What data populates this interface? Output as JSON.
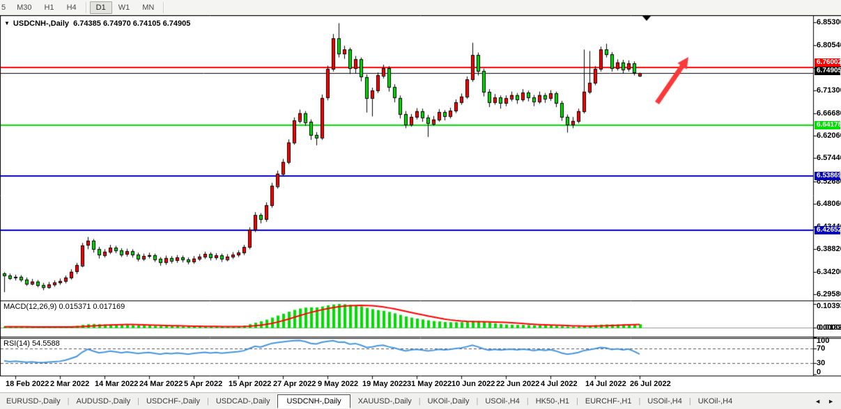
{
  "toolbar": {
    "timeframes": [
      {
        "label": "5",
        "active": false
      },
      {
        "label": "M30",
        "active": false
      },
      {
        "label": "H1",
        "active": false
      },
      {
        "label": "H4",
        "active": false
      },
      {
        "label": "D1",
        "active": true
      },
      {
        "label": "W1",
        "active": false
      },
      {
        "label": "MN",
        "active": false
      }
    ]
  },
  "chart": {
    "title_symbol": "USDCNH-,Daily",
    "title_ohlc": "6.74385 6.74970 6.74105 6.74905",
    "toggle_icon": "▼",
    "price_axis": {
      "min": 6.2958,
      "max": 6.853,
      "ticks": [
        "6.85300",
        "6.80540",
        "6.75920",
        "6.71300",
        "6.66680",
        "6.62060",
        "6.57440",
        "6.52680",
        "6.48060",
        "6.43440",
        "6.38820",
        "6.34200",
        "6.29580"
      ]
    },
    "levels": [
      {
        "value": 6.76002,
        "label": "6.76002",
        "color": "#ff0000",
        "text_color": "#ffffff",
        "line_width": 2
      },
      {
        "value": 6.74905,
        "label": "6.74905",
        "color": "#000000",
        "text_color": "#ffffff",
        "line_width": 1
      },
      {
        "value": 6.64178,
        "label": "6.64178",
        "color": "#00e000",
        "text_color": "#ffffff",
        "line_width": 2
      },
      {
        "value": 6.53869,
        "label": "6.53869",
        "color": "#0000c8",
        "text_color": "#ffffff",
        "line_width": 2
      },
      {
        "value": 6.42652,
        "label": "6.42652",
        "color": "#0000c8",
        "text_color": "#ffffff",
        "line_width": 2
      }
    ],
    "colors": {
      "bull": "#ff0000",
      "bear": "#00dd00",
      "outline": "#000000",
      "macd_hist": "#00e000",
      "macd_signal": "#ff0000",
      "rsi_line": "#4695e0",
      "arrow": "#fa3a3a",
      "background": "#ffffff"
    },
    "arrow_annotation": {
      "from": [
        943,
        126
      ],
      "to": [
        988,
        60
      ]
    },
    "shift_marker_x": 928
  },
  "macd_panel": {
    "label": "MACD(12,26,9) 0.015371 0.017169",
    "axis_top": "0.103934",
    "axis_bottom_overlap": [
      "0.00000",
      "0.018297"
    ]
  },
  "rsi_panel": {
    "label": "RSI(14) 54.5588",
    "axis": [
      "100",
      "70",
      "30",
      "0"
    ],
    "dashed_levels": [
      70,
      30
    ]
  },
  "chart_data": {
    "type": "candlestick",
    "symbol": "USDCNH-",
    "timeframe": "Daily",
    "title": "USDCNH-,Daily 6.74385 6.74970 6.74105 6.74905",
    "ylim": [
      6.2958,
      6.853
    ],
    "legend_position": "none",
    "grid": false,
    "x_tick_indices": [
      2,
      10,
      18,
      26,
      34,
      42,
      50,
      58,
      66,
      74,
      82,
      90,
      98,
      106,
      114
    ],
    "x_tick_labels": [
      "18 Feb 2022",
      "2 Mar 2022",
      "14 Mar 2022",
      "24 Mar 2022",
      "5 Apr 2022",
      "15 Apr 2022",
      "27 Apr 2022",
      "9 May 2022",
      "19 May 2022",
      "31 May 2022",
      "10 Jun 2022",
      "22 Jun 2022",
      "4 Jul 2022",
      "14 Jul 2022",
      "26 Jul 2022"
    ],
    "ohlc": [
      [
        6.338,
        6.341,
        6.3,
        6.334
      ],
      [
        6.334,
        6.338,
        6.325,
        6.329
      ],
      [
        6.329,
        6.336,
        6.324,
        6.331
      ],
      [
        6.331,
        6.335,
        6.321,
        6.326
      ],
      [
        6.326,
        6.33,
        6.313,
        6.318
      ],
      [
        6.318,
        6.327,
        6.314,
        6.322
      ],
      [
        6.322,
        6.325,
        6.31,
        6.315
      ],
      [
        6.315,
        6.319,
        6.304,
        6.311
      ],
      [
        6.311,
        6.321,
        6.307,
        6.316
      ],
      [
        6.316,
        6.324,
        6.311,
        6.32
      ],
      [
        6.32,
        6.328,
        6.315,
        6.323
      ],
      [
        6.323,
        6.334,
        6.318,
        6.33
      ],
      [
        6.33,
        6.347,
        6.326,
        6.342
      ],
      [
        6.342,
        6.36,
        6.337,
        6.355
      ],
      [
        6.355,
        6.401,
        6.351,
        6.396
      ],
      [
        6.396,
        6.413,
        6.388,
        6.405
      ],
      [
        6.405,
        6.409,
        6.381,
        6.388
      ],
      [
        6.388,
        6.393,
        6.369,
        6.376
      ],
      [
        6.376,
        6.388,
        6.371,
        6.383
      ],
      [
        6.383,
        6.397,
        6.378,
        6.391
      ],
      [
        6.391,
        6.395,
        6.38,
        6.386
      ],
      [
        6.386,
        6.39,
        6.372,
        6.378
      ],
      [
        6.378,
        6.389,
        6.373,
        6.384
      ],
      [
        6.384,
        6.388,
        6.371,
        6.377
      ],
      [
        6.377,
        6.381,
        6.363,
        6.369
      ],
      [
        6.369,
        6.379,
        6.364,
        6.374
      ],
      [
        6.374,
        6.381,
        6.369,
        6.376
      ],
      [
        6.376,
        6.379,
        6.362,
        6.368
      ],
      [
        6.368,
        6.372,
        6.354,
        6.361
      ],
      [
        6.361,
        6.375,
        6.356,
        6.37
      ],
      [
        6.37,
        6.374,
        6.359,
        6.365
      ],
      [
        6.365,
        6.376,
        6.36,
        6.371
      ],
      [
        6.371,
        6.375,
        6.361,
        6.367
      ],
      [
        6.367,
        6.371,
        6.357,
        6.363
      ],
      [
        6.363,
        6.374,
        6.358,
        6.369
      ],
      [
        6.369,
        6.378,
        6.364,
        6.373
      ],
      [
        6.373,
        6.383,
        6.368,
        6.378
      ],
      [
        6.378,
        6.382,
        6.365,
        6.371
      ],
      [
        6.371,
        6.38,
        6.366,
        6.375
      ],
      [
        6.375,
        6.379,
        6.362,
        6.368
      ],
      [
        6.368,
        6.378,
        6.363,
        6.373
      ],
      [
        6.373,
        6.382,
        6.368,
        6.377
      ],
      [
        6.377,
        6.386,
        6.372,
        6.381
      ],
      [
        6.381,
        6.397,
        6.376,
        6.392
      ],
      [
        6.392,
        6.433,
        6.388,
        6.428
      ],
      [
        6.428,
        6.464,
        6.423,
        6.458
      ],
      [
        6.458,
        6.462,
        6.441,
        6.449
      ],
      [
        6.449,
        6.484,
        6.444,
        6.478
      ],
      [
        6.478,
        6.524,
        6.473,
        6.518
      ],
      [
        6.518,
        6.549,
        6.512,
        6.543
      ],
      [
        6.543,
        6.573,
        6.538,
        6.567
      ],
      [
        6.567,
        6.613,
        6.562,
        6.607
      ],
      [
        6.607,
        6.658,
        6.602,
        6.652
      ],
      [
        6.652,
        6.674,
        6.646,
        6.667
      ],
      [
        6.667,
        6.671,
        6.641,
        6.649
      ],
      [
        6.649,
        6.654,
        6.612,
        6.622
      ],
      [
        6.622,
        6.628,
        6.601,
        6.617
      ],
      [
        6.617,
        6.705,
        6.612,
        6.698
      ],
      [
        6.698,
        6.764,
        6.693,
        6.757
      ],
      [
        6.757,
        6.829,
        6.752,
        6.82
      ],
      [
        6.82,
        6.851,
        6.781,
        6.788
      ],
      [
        6.788,
        6.805,
        6.778,
        6.797
      ],
      [
        6.797,
        6.801,
        6.747,
        6.758
      ],
      [
        6.758,
        6.784,
        6.749,
        6.777
      ],
      [
        6.777,
        6.781,
        6.732,
        6.741
      ],
      [
        6.741,
        6.746,
        6.668,
        6.698
      ],
      [
        6.698,
        6.719,
        6.66,
        6.713
      ],
      [
        6.713,
        6.75,
        6.708,
        6.744
      ],
      [
        6.744,
        6.766,
        6.738,
        6.759
      ],
      [
        6.759,
        6.763,
        6.711,
        6.72
      ],
      [
        6.72,
        6.726,
        6.689,
        6.698
      ],
      [
        6.698,
        6.703,
        6.656,
        6.665
      ],
      [
        6.665,
        6.671,
        6.636,
        6.644
      ],
      [
        6.644,
        6.665,
        6.639,
        6.659
      ],
      [
        6.659,
        6.677,
        6.654,
        6.671
      ],
      [
        6.671,
        6.676,
        6.649,
        6.658
      ],
      [
        6.658,
        6.663,
        6.618,
        6.646
      ],
      [
        6.646,
        6.661,
        6.641,
        6.654
      ],
      [
        6.654,
        6.675,
        6.649,
        6.669
      ],
      [
        6.669,
        6.673,
        6.652,
        6.661
      ],
      [
        6.661,
        6.678,
        6.656,
        6.672
      ],
      [
        6.672,
        6.695,
        6.667,
        6.689
      ],
      [
        6.689,
        6.707,
        6.684,
        6.701
      ],
      [
        6.701,
        6.742,
        6.696,
        6.736
      ],
      [
        6.736,
        6.811,
        6.731,
        6.786
      ],
      [
        6.786,
        6.791,
        6.744,
        6.753
      ],
      [
        6.753,
        6.758,
        6.701,
        6.71
      ],
      [
        6.71,
        6.716,
        6.679,
        6.689
      ],
      [
        6.689,
        6.706,
        6.684,
        6.699
      ],
      [
        6.699,
        6.703,
        6.676,
        6.687
      ],
      [
        6.687,
        6.703,
        6.681,
        6.697
      ],
      [
        6.697,
        6.711,
        6.691,
        6.704
      ],
      [
        6.704,
        6.708,
        6.686,
        6.695
      ],
      [
        6.695,
        6.716,
        6.69,
        6.709
      ],
      [
        6.709,
        6.713,
        6.691,
        6.699
      ],
      [
        6.699,
        6.704,
        6.681,
        6.691
      ],
      [
        6.691,
        6.711,
        6.686,
        6.704
      ],
      [
        6.704,
        6.708,
        6.688,
        6.697
      ],
      [
        6.697,
        6.714,
        6.692,
        6.707
      ],
      [
        6.707,
        6.711,
        6.679,
        6.687
      ],
      [
        6.687,
        6.692,
        6.651,
        6.659
      ],
      [
        6.659,
        6.664,
        6.627,
        6.644
      ],
      [
        6.644,
        6.659,
        6.636,
        6.651
      ],
      [
        6.651,
        6.676,
        6.646,
        6.671
      ],
      [
        6.671,
        6.797,
        6.666,
        6.711
      ],
      [
        6.711,
        6.794,
        6.706,
        6.729
      ],
      [
        6.729,
        6.763,
        6.724,
        6.757
      ],
      [
        6.757,
        6.803,
        6.752,
        6.797
      ],
      [
        6.797,
        6.809,
        6.781,
        6.787
      ],
      [
        6.787,
        6.792,
        6.752,
        6.759
      ],
      [
        6.759,
        6.777,
        6.754,
        6.771
      ],
      [
        6.771,
        6.776,
        6.749,
        6.757
      ],
      [
        6.757,
        6.775,
        6.752,
        6.769
      ],
      [
        6.769,
        6.773,
        6.744,
        6.751
      ],
      [
        6.74385,
        6.7497,
        6.74105,
        6.74905
      ]
    ],
    "indicators": [
      {
        "type": "bar",
        "name": "MACD(12,26,9)",
        "current_values": [
          0.015371,
          0.017169
        ],
        "axis_max": 0.103934,
        "values": [
          0.004,
          0.004,
          0.0035,
          0.003,
          0.003,
          0.0025,
          0.002,
          0.002,
          0.0025,
          0.003,
          0.003,
          0.004,
          0.006,
          0.008,
          0.012,
          0.015,
          0.016,
          0.015,
          0.014,
          0.014,
          0.013,
          0.012,
          0.012,
          0.011,
          0.01,
          0.009,
          0.009,
          0.008,
          0.007,
          0.007,
          0.006,
          0.006,
          0.005,
          0.005,
          0.005,
          0.005,
          0.005,
          0.005,
          0.004,
          0.004,
          0.004,
          0.005,
          0.006,
          0.009,
          0.015,
          0.022,
          0.028,
          0.035,
          0.044,
          0.053,
          0.061,
          0.07,
          0.078,
          0.084,
          0.088,
          0.089,
          0.089,
          0.093,
          0.098,
          0.102,
          0.104,
          0.103,
          0.1,
          0.097,
          0.093,
          0.087,
          0.081,
          0.077,
          0.074,
          0.069,
          0.063,
          0.056,
          0.049,
          0.044,
          0.04,
          0.036,
          0.032,
          0.029,
          0.027,
          0.025,
          0.024,
          0.024,
          0.024,
          0.026,
          0.029,
          0.029,
          0.026,
          0.022,
          0.019,
          0.016,
          0.014,
          0.013,
          0.012,
          0.012,
          0.011,
          0.01,
          0.01,
          0.009,
          0.009,
          0.008,
          0.006,
          0.005,
          0.004,
          0.005,
          0.007,
          0.009,
          0.011,
          0.013,
          0.014,
          0.014,
          0.014,
          0.014,
          0.015,
          0.015,
          0.015
        ]
      },
      {
        "type": "line",
        "name": "RSI(14)",
        "current_value": 54.5588,
        "axis_range": [
          0,
          100
        ],
        "overbought": 70,
        "oversold": 30,
        "values": [
          36,
          34,
          35,
          34,
          32.5,
          33.5,
          32,
          31.5,
          33,
          34,
          35,
          38,
          43,
          48,
          60,
          68,
          63,
          58,
          60,
          63,
          61,
          58,
          60.5,
          58.5,
          56,
          58,
          59,
          56.5,
          54.5,
          57,
          55.5,
          57.5,
          56,
          54.5,
          56.5,
          58,
          59.5,
          57.5,
          59,
          57,
          58.5,
          60,
          61.5,
          64,
          70,
          76,
          74,
          79,
          84,
          86,
          88,
          90,
          91.5,
          92,
          89,
          84,
          82.5,
          87,
          89.5,
          91.5,
          87,
          87.5,
          82,
          83.5,
          79,
          73,
          74.5,
          77.5,
          79,
          74.5,
          71.5,
          67,
          63.5,
          66,
          67.5,
          65.5,
          63.5,
          65,
          67.5,
          66,
          67.5,
          70,
          71.5,
          75,
          79,
          74.5,
          69,
          65.5,
          67.5,
          65.5,
          67,
          68,
          66,
          68,
          66.5,
          64.5,
          66.5,
          65,
          66.5,
          63,
          57.5,
          54.5,
          56,
          59,
          64.5,
          66.5,
          69.5,
          73,
          71.5,
          67,
          69,
          66,
          68.5,
          62,
          54.56
        ]
      }
    ]
  },
  "tab_bar": {
    "scroll_left": "◄",
    "scroll_right": "►",
    "tabs": [
      {
        "label": "EURUSD-,Daily",
        "active": false
      },
      {
        "label": "AUDUSD-,Daily",
        "active": false
      },
      {
        "label": "USDCHF-,Daily",
        "active": false
      },
      {
        "label": "USDCAD-,Daily",
        "active": false
      },
      {
        "label": "USDCNH-,Daily",
        "active": true
      },
      {
        "label": "XAUUSD-,Daily",
        "active": false
      },
      {
        "label": "UKOil-,Daily",
        "active": false
      },
      {
        "label": "USOil-,H4",
        "active": false
      },
      {
        "label": "HK50-,H1",
        "active": false
      },
      {
        "label": "EURCHF-,H1",
        "active": false
      },
      {
        "label": "USOil-,H4",
        "active": false
      },
      {
        "label": "UKOil-,H4",
        "active": false
      }
    ]
  }
}
